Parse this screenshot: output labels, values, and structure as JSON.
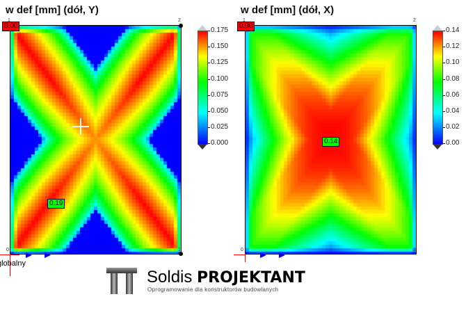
{
  "plots": [
    {
      "title": "w def [mm] (dół, Y)",
      "min_label": "0.00",
      "max_label": "0.19",
      "corner_labels": [
        "1",
        "2",
        "0",
        "1"
      ],
      "colorbar": {
        "ticks": [
          "0.175",
          "0.150",
          "0.125",
          "0.100",
          "0.075",
          "0.050",
          "0.025",
          "0.000"
        ],
        "min": 0,
        "max": 0.19
      }
    },
    {
      "title": "w def [mm] (dół, X)",
      "min_label": "0.00",
      "max_label": "0.14",
      "corner_labels": [
        "1",
        "2",
        "0",
        "1"
      ],
      "colorbar": {
        "ticks": [
          "0.14",
          "0.12",
          "0.10",
          "0.08",
          "0.06",
          "0.04",
          "0.02",
          "0.00"
        ],
        "min": 0,
        "max": 0.14
      }
    }
  ],
  "axis_label": "globalny",
  "logo": {
    "name_light": "Soldis ",
    "name_bold": "PROJEKTANT",
    "tagline": "Oprogramowanie dla konstruktorów budowlanych"
  },
  "colors": {
    "min": "#0000ff",
    "mid": "#00ff00",
    "max": "#ff0000"
  }
}
